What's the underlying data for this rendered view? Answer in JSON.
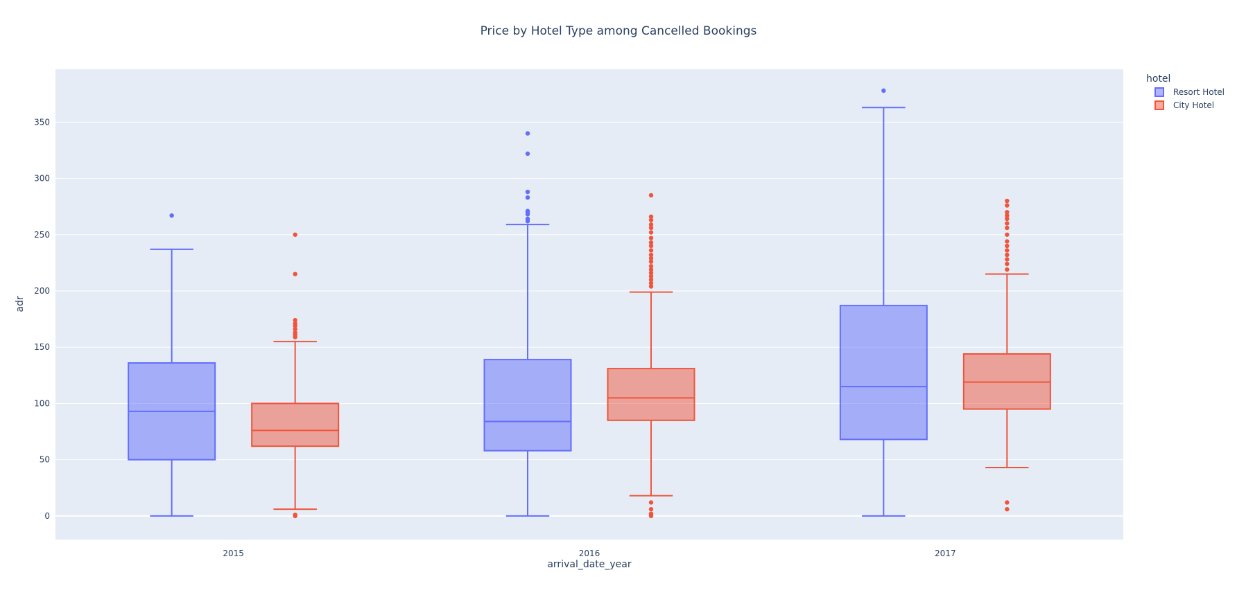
{
  "chart_data": {
    "type": "box",
    "title": "Price by Hotel Type among Cancelled Bookings",
    "xlabel": "arrival_date_year",
    "ylabel": "adr",
    "categories": [
      "2015",
      "2016",
      "2017"
    ],
    "ylim": [
      -21,
      397
    ],
    "yticks": [
      0,
      50,
      100,
      150,
      200,
      250,
      300,
      350
    ],
    "grid": true,
    "legend": {
      "title": "hotel",
      "position": "top-right"
    },
    "series": [
      {
        "name": "Resort Hotel",
        "color": "#636efa",
        "boxes": [
          {
            "category": "2015",
            "min": 0,
            "q1": 50,
            "median": 93,
            "q3": 136,
            "max": 237,
            "outliers": [
              267
            ]
          },
          {
            "category": "2016",
            "min": 0,
            "q1": 58,
            "median": 84,
            "q3": 139,
            "max": 259,
            "outliers": [
              262,
              264,
              268,
              270,
              271,
              283,
              288,
              322,
              340
            ]
          },
          {
            "category": "2017",
            "min": 0,
            "q1": 68,
            "median": 115,
            "q3": 187,
            "max": 363,
            "outliers": [
              378
            ]
          }
        ]
      },
      {
        "name": "City Hotel",
        "color": "#ef553b",
        "boxes": [
          {
            "category": "2015",
            "min": 6,
            "q1": 62,
            "median": 76,
            "q3": 100,
            "max": 155,
            "outliers": [
              0,
              1,
              159,
              161,
              163,
              166,
              169,
              171,
              174,
              215,
              250
            ]
          },
          {
            "category": "2016",
            "min": 18,
            "q1": 85,
            "median": 105,
            "q3": 131,
            "max": 199,
            "outliers": [
              0,
              1,
              2,
              6,
              12,
              204,
              207,
              210,
              213,
              216,
              219,
              222,
              226,
              229,
              232,
              236,
              240,
              243,
              247,
              252,
              256,
              259,
              263,
              266,
              285
            ]
          },
          {
            "category": "2017",
            "min": 43,
            "q1": 95,
            "median": 119,
            "q3": 144,
            "max": 215,
            "outliers": [
              6,
              12,
              219,
              224,
              228,
              232,
              236,
              240,
              244,
              250,
              256,
              260,
              264,
              267,
              270,
              276,
              280
            ]
          }
        ]
      }
    ]
  }
}
